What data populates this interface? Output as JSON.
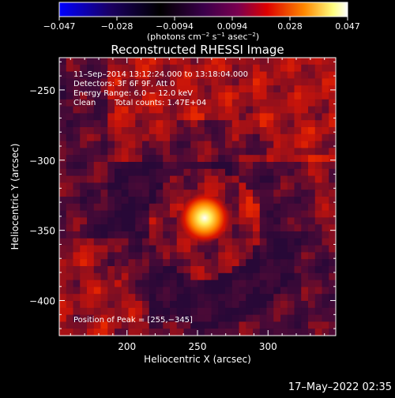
{
  "chart_data": {
    "type": "heatmap",
    "title": "Reconstructed RHESSI Image",
    "xlabel": "Heliocentric X (arcsec)",
    "ylabel": "Heliocentric Y (arcsec)",
    "xlim": [
      152,
      348
    ],
    "ylim": [
      -425,
      -227
    ],
    "x_ticks": [
      200,
      250,
      300
    ],
    "x_tick_labels": [
      "200",
      "250",
      "300"
    ],
    "y_ticks": [
      -250,
      -300,
      -350,
      -400
    ],
    "y_tick_labels": [
      "−250",
      "−300",
      "−350",
      "−400"
    ],
    "colorbar": {
      "range": [
        -0.047,
        0.047
      ],
      "tick_labels": [
        "−0.047",
        "−0.028",
        "−0.0094",
        "0.0094",
        "0.028",
        "0.047"
      ],
      "unit_base": "(photons cm",
      "unit_exp1": "−2",
      "unit_mid": " s",
      "unit_exp2": "−1",
      "unit_end": " asec",
      "unit_exp3": "−2",
      "unit_close": ")",
      "colors": [
        "#0000ff",
        "#000000",
        "#7f00ff",
        "#ff0000",
        "#ffaa00",
        "#ffffff"
      ]
    },
    "annotations": {
      "time_range": "11–Sep–2014 13:12:24.000 to 13:18:04.000",
      "detectors": "Detectors: 3F 6F 9F, Att 0",
      "energy": "Energy Range: 6.0 − 12.0 keV",
      "method": "Clean",
      "counts": "Total counts: 1.47E+04",
      "peak": "Position of Peak = [255,−345]"
    },
    "peak": {
      "x": 255,
      "y": -345,
      "value": 0.047
    },
    "date_stamp": "17–May–2022 02:35"
  }
}
